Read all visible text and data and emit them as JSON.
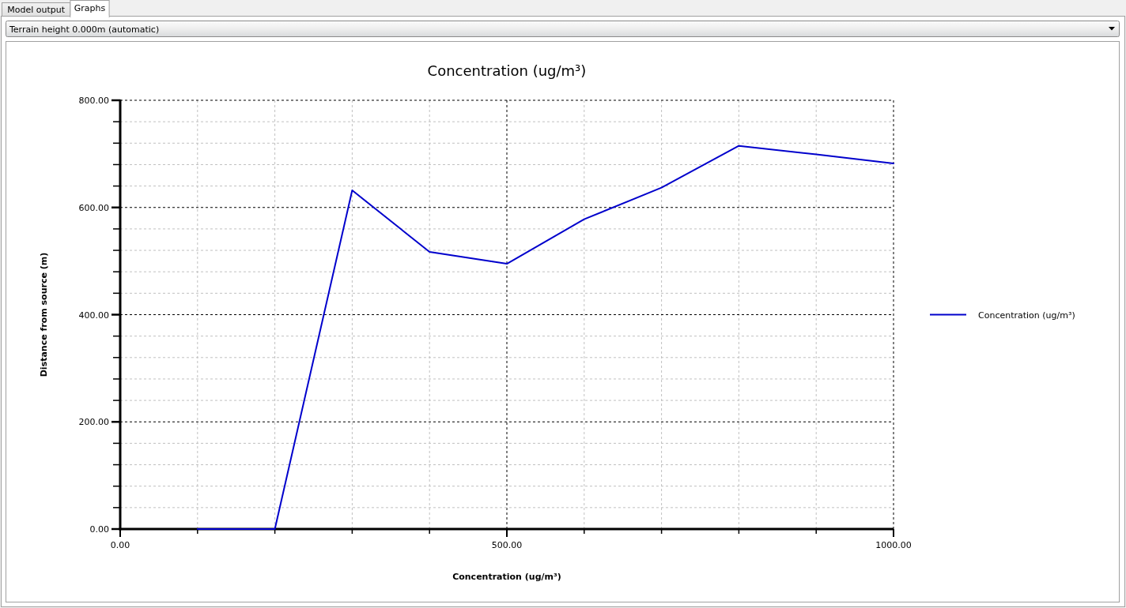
{
  "chart_data": {
    "type": "line",
    "title": "Concentration (ug/m³)",
    "xlabel": "Concentration (ug/m³)",
    "ylabel": "Distance from source (m)",
    "annotations": [
      "Model output",
      "Graphs",
      "Terrain height 0.000m (automatic)"
    ],
    "x": [
      100,
      200,
      300,
      400,
      500,
      600,
      700,
      800,
      900,
      1000
    ],
    "series": [
      {
        "name": "Concentration (ug/m³)",
        "color": "#0000cc",
        "values": [
          0,
          0,
          632,
          517,
          495,
          578,
          637,
          715,
          699,
          682
        ]
      }
    ],
    "xlim": [
      0,
      1000
    ],
    "ylim": [
      0,
      800
    ],
    "xticks": [
      {
        "value": 0,
        "label": "0.00"
      },
      {
        "value": 100,
        "label": null
      },
      {
        "value": 200,
        "label": null
      },
      {
        "value": 300,
        "label": null
      },
      {
        "value": 400,
        "label": null
      },
      {
        "value": 500,
        "label": "500.00"
      },
      {
        "value": 600,
        "label": null
      },
      {
        "value": 700,
        "label": null
      },
      {
        "value": 800,
        "label": null
      },
      {
        "value": 900,
        "label": null
      },
      {
        "value": 1000,
        "label": "1000.00"
      }
    ],
    "yticks": [
      {
        "value": 0,
        "label": "0.00"
      },
      {
        "value": 40,
        "label": null
      },
      {
        "value": 80,
        "label": null
      },
      {
        "value": 120,
        "label": null
      },
      {
        "value": 160,
        "label": null
      },
      {
        "value": 200,
        "label": "200.00"
      },
      {
        "value": 240,
        "label": null
      },
      {
        "value": 280,
        "label": null
      },
      {
        "value": 320,
        "label": null
      },
      {
        "value": 360,
        "label": null
      },
      {
        "value": 400,
        "label": "400.00"
      },
      {
        "value": 440,
        "label": null
      },
      {
        "value": 480,
        "label": null
      },
      {
        "value": 520,
        "label": null
      },
      {
        "value": 560,
        "label": null
      },
      {
        "value": 600,
        "label": "600.00"
      },
      {
        "value": 640,
        "label": null
      },
      {
        "value": 680,
        "label": null
      },
      {
        "value": 720,
        "label": null
      },
      {
        "value": 760,
        "label": null
      },
      {
        "value": 800,
        "label": "800.00"
      }
    ],
    "grid": true,
    "legend": "right"
  }
}
